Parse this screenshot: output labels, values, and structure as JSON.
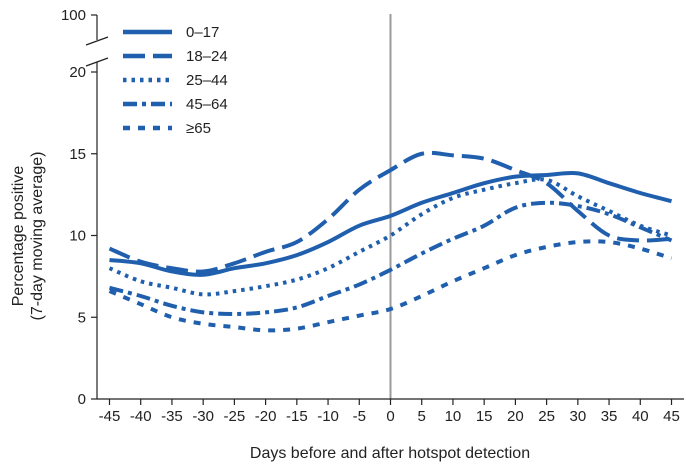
{
  "chart_data": {
    "type": "line",
    "title": "",
    "xlabel": "Days before and after hotspot detection",
    "ylabel": [
      "Percentage positive",
      "(7-day moving average)"
    ],
    "xlim": [
      -47,
      47
    ],
    "ylim": [
      0,
      20
    ],
    "y_break_label": "100",
    "x_ticks": [
      -45,
      -40,
      -35,
      -30,
      -25,
      -20,
      -15,
      -10,
      -5,
      0,
      5,
      10,
      15,
      20,
      25,
      30,
      35,
      40,
      45
    ],
    "x_tick_labels": [
      "-45",
      "-40",
      "-35",
      "-30",
      "-25",
      "-20",
      "-15",
      "-10",
      "-5",
      "0",
      "5",
      "10",
      "15",
      "20",
      "25",
      "30",
      "35",
      "40",
      "45"
    ],
    "y_ticks": [
      0,
      5,
      10,
      15,
      20
    ],
    "y_tick_labels": [
      "0",
      "5",
      "10",
      "15",
      "20"
    ],
    "reference_line_x": 0,
    "grid": false,
    "legend_position": "top-left",
    "x": [
      -45,
      -40,
      -35,
      -30,
      -25,
      -20,
      -15,
      -10,
      -5,
      0,
      5,
      10,
      15,
      20,
      25,
      30,
      35,
      40,
      45
    ],
    "series": [
      {
        "name": "0–17",
        "dash": "solid",
        "color": "#1f5fad",
        "values": [
          8.5,
          8.3,
          7.8,
          7.6,
          8.0,
          8.3,
          8.8,
          9.6,
          10.6,
          11.2,
          12.0,
          12.6,
          13.2,
          13.6,
          13.7,
          13.8,
          13.2,
          12.6,
          12.1
        ]
      },
      {
        "name": "18–24",
        "dash": "long-dash",
        "color": "#1f5fad",
        "values": [
          9.2,
          8.4,
          8.0,
          7.8,
          8.3,
          9.0,
          9.6,
          11.0,
          12.8,
          14.0,
          15.0,
          14.9,
          14.7,
          14.0,
          13.2,
          11.5,
          10.0,
          9.7,
          9.8
        ]
      },
      {
        "name": "25–44",
        "dash": "dot",
        "color": "#1f5fad",
        "values": [
          8.0,
          7.2,
          6.8,
          6.4,
          6.6,
          6.9,
          7.3,
          8.0,
          9.0,
          10.0,
          11.3,
          12.3,
          12.8,
          13.2,
          13.4,
          12.4,
          11.5,
          10.6,
          10.0
        ]
      },
      {
        "name": "45–64",
        "dash": "dash-dot",
        "color": "#1f5fad",
        "values": [
          6.8,
          6.3,
          5.7,
          5.3,
          5.2,
          5.3,
          5.6,
          6.3,
          7.0,
          7.9,
          8.9,
          9.8,
          10.6,
          11.7,
          12.0,
          11.8,
          11.3,
          10.5,
          9.7
        ]
      },
      {
        "name": "≥65",
        "dash": "short-dash",
        "color": "#1f5fad",
        "values": [
          6.6,
          5.8,
          5.0,
          4.6,
          4.4,
          4.2,
          4.3,
          4.7,
          5.1,
          5.5,
          6.3,
          7.2,
          8.0,
          8.8,
          9.3,
          9.6,
          9.6,
          9.2,
          8.6
        ]
      }
    ]
  }
}
